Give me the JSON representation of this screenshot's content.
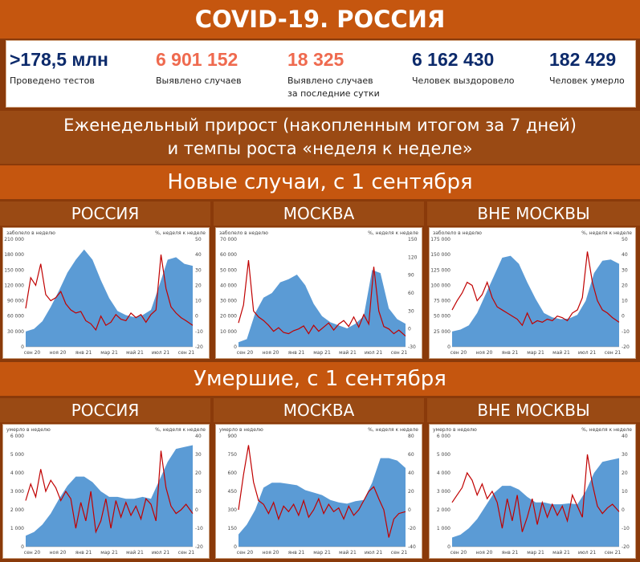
{
  "header": {
    "title": "COVID-19. РОССИЯ",
    "stats": [
      {
        "value": ">178,5 млн",
        "label": "Проведено тестов",
        "color": "#0c2a6b"
      },
      {
        "value": "6 901 152",
        "label": "Выявлено случаев",
        "color": "#ef6a4f"
      },
      {
        "value": "18 325",
        "label": "Выявлено случаев\nза последние сутки",
        "color": "#ef6a4f"
      },
      {
        "value": "6 162 430",
        "label": "Человек выздоровело",
        "color": "#0c2a6b"
      },
      {
        "value": "182 429",
        "label": "Человек умерло",
        "color": "#0c2a6b"
      }
    ],
    "subtitle_line1": "Еженедельный прирост (накопленным итогом за 7 дней)",
    "subtitle_line2": "и темпы роста «неделя к неделе»"
  },
  "sections": {
    "cases_title": "Новые случаи, с 1 сентября",
    "deaths_title": "Умершие, с 1 сентября"
  },
  "colors": {
    "area": "#5b9bd5",
    "line": "#c00000",
    "orange": "#c5560f",
    "brown": "#9a4a14"
  },
  "chart_data": [
    {
      "type": "area",
      "region": "РОССИЯ",
      "metric": "cases",
      "ylabel_left": "заболело в неделю",
      "ylabel_right": "%, неделя к неделе",
      "ylim": [
        0,
        210000
      ],
      "y2lim": [
        -20,
        50
      ],
      "yticks": [
        "0",
        "30 000",
        "60 000",
        "90 000",
        "120 000",
        "150 000",
        "180 000",
        "210 000"
      ],
      "y2ticks": [
        "-20",
        "-10",
        "0",
        "10",
        "20",
        "30",
        "40",
        "50"
      ],
      "xticks": [
        "сен 20",
        "ноя 20",
        "янв 21",
        "мар 21",
        "май 21",
        "июл 21",
        "сен 21"
      ],
      "series": [
        {
          "kind": "area",
          "x": [
            0,
            0.05,
            0.1,
            0.15,
            0.2,
            0.25,
            0.3,
            0.35,
            0.4,
            0.45,
            0.5,
            0.55,
            0.6,
            0.65,
            0.7,
            0.75,
            0.8,
            0.85,
            0.9,
            0.95,
            1
          ],
          "values": [
            30000,
            35000,
            50000,
            78000,
            110000,
            145000,
            170000,
            190000,
            170000,
            130000,
            95000,
            70000,
            62000,
            58000,
            62000,
            72000,
            120000,
            170000,
            175000,
            162000,
            158000
          ]
        },
        {
          "kind": "line",
          "x": [
            0,
            0.03,
            0.06,
            0.09,
            0.12,
            0.15,
            0.18,
            0.21,
            0.24,
            0.27,
            0.3,
            0.33,
            0.36,
            0.39,
            0.42,
            0.45,
            0.48,
            0.51,
            0.54,
            0.57,
            0.6,
            0.63,
            0.66,
            0.69,
            0.72,
            0.75,
            0.78,
            0.81,
            0.84,
            0.87,
            0.9,
            0.93,
            0.96,
            1
          ],
          "values": [
            5,
            25,
            20,
            34,
            14,
            10,
            12,
            16,
            8,
            4,
            2,
            3,
            -3,
            -5,
            -9,
            0,
            -6,
            -4,
            1,
            -2,
            -3,
            2,
            -1,
            1,
            -4,
            1,
            4,
            40,
            18,
            6,
            2,
            -1,
            -3,
            -6
          ]
        }
      ]
    },
    {
      "type": "area",
      "region": "МОСКВА",
      "metric": "cases",
      "ylabel_left": "заболело в неделю",
      "ylabel_right": "%, неделя к неделе",
      "ylim": [
        0,
        70000
      ],
      "y2lim": [
        -30,
        150
      ],
      "yticks": [
        "0",
        "10 000",
        "20 000",
        "30 000",
        "40 000",
        "50 000",
        "60 000",
        "70 000"
      ],
      "y2ticks": [
        "-30",
        "0",
        "30",
        "60",
        "90",
        "120",
        "150"
      ],
      "xticks": [
        "сен 20",
        "ноя 20",
        "янв 21",
        "мар 21",
        "май 21",
        "июл 21",
        "сен 21"
      ],
      "series": [
        {
          "kind": "area",
          "x": [
            0,
            0.05,
            0.1,
            0.15,
            0.2,
            0.25,
            0.3,
            0.35,
            0.4,
            0.45,
            0.5,
            0.55,
            0.6,
            0.65,
            0.7,
            0.75,
            0.8,
            0.85,
            0.9,
            0.95,
            1
          ],
          "values": [
            3000,
            5000,
            22000,
            32000,
            35000,
            42000,
            44000,
            47000,
            40000,
            28000,
            20000,
            16000,
            14000,
            12000,
            15000,
            20000,
            50000,
            48000,
            25000,
            18000,
            15000
          ]
        },
        {
          "kind": "line",
          "x": [
            0,
            0.03,
            0.06,
            0.09,
            0.12,
            0.15,
            0.18,
            0.21,
            0.24,
            0.27,
            0.3,
            0.33,
            0.36,
            0.39,
            0.42,
            0.45,
            0.48,
            0.51,
            0.54,
            0.57,
            0.6,
            0.63,
            0.66,
            0.69,
            0.72,
            0.75,
            0.78,
            0.81,
            0.84,
            0.87,
            0.9,
            0.93,
            0.96,
            1
          ],
          "values": [
            10,
            40,
            115,
            30,
            20,
            14,
            6,
            -4,
            2,
            -6,
            -8,
            -3,
            0,
            5,
            -8,
            6,
            -4,
            3,
            10,
            -2,
            8,
            14,
            4,
            20,
            3,
            24,
            8,
            104,
            30,
            4,
            0,
            -8,
            -2,
            -12
          ]
        }
      ]
    },
    {
      "type": "area",
      "region": "ВНЕ МОСКВЫ",
      "metric": "cases",
      "ylabel_left": "заболело в неделю",
      "ylabel_right": "%, неделя к неделе",
      "ylim": [
        0,
        175000
      ],
      "y2lim": [
        -20,
        50
      ],
      "yticks": [
        "0",
        "25 000",
        "50 000",
        "75 000",
        "100 000",
        "125 000",
        "150 000",
        "175 000"
      ],
      "y2ticks": [
        "-20",
        "-10",
        "0",
        "10",
        "20",
        "30",
        "40",
        "50"
      ],
      "xticks": [
        "сен 20",
        "ноя 20",
        "янв 21",
        "мар 21",
        "май 21",
        "июл 21",
        "сен 21"
      ],
      "series": [
        {
          "kind": "area",
          "x": [
            0,
            0.05,
            0.1,
            0.15,
            0.2,
            0.25,
            0.3,
            0.35,
            0.4,
            0.45,
            0.5,
            0.55,
            0.6,
            0.65,
            0.7,
            0.75,
            0.8,
            0.85,
            0.9,
            0.95,
            1
          ],
          "values": [
            25000,
            28000,
            35000,
            55000,
            85000,
            115000,
            145000,
            148000,
            135000,
            105000,
            78000,
            55000,
            48000,
            45000,
            46000,
            52000,
            75000,
            120000,
            140000,
            142000,
            135000
          ]
        },
        {
          "kind": "line",
          "x": [
            0,
            0.03,
            0.06,
            0.09,
            0.12,
            0.15,
            0.18,
            0.21,
            0.24,
            0.27,
            0.3,
            0.33,
            0.36,
            0.39,
            0.42,
            0.45,
            0.48,
            0.51,
            0.54,
            0.57,
            0.6,
            0.63,
            0.66,
            0.69,
            0.72,
            0.75,
            0.78,
            0.81,
            0.84,
            0.87,
            0.9,
            0.93,
            0.96,
            1
          ],
          "values": [
            4,
            10,
            15,
            22,
            20,
            10,
            14,
            22,
            12,
            6,
            4,
            2,
            0,
            -2,
            -6,
            2,
            -5,
            -3,
            -4,
            -2,
            -3,
            0,
            -1,
            -3,
            2,
            4,
            12,
            42,
            22,
            10,
            4,
            2,
            -1,
            -4
          ]
        }
      ]
    },
    {
      "type": "area",
      "region": "РОССИЯ",
      "metric": "deaths",
      "ylabel_left": "умерло в неделю",
      "ylabel_right": "%, неделя к неделе",
      "ylim": [
        0,
        6000
      ],
      "y2lim": [
        -20,
        40
      ],
      "yticks": [
        "0",
        "1 000",
        "2 000",
        "3 000",
        "4 000",
        "5 000",
        "6 000"
      ],
      "y2ticks": [
        "-20",
        "-10",
        "0",
        "10",
        "20",
        "30",
        "40"
      ],
      "xticks": [
        "сен 20",
        "ноя 20",
        "янв 21",
        "мар 21",
        "май 21",
        "июл 21",
        "сен 21"
      ],
      "series": [
        {
          "kind": "area",
          "x": [
            0,
            0.05,
            0.1,
            0.15,
            0.2,
            0.25,
            0.3,
            0.35,
            0.4,
            0.45,
            0.5,
            0.55,
            0.6,
            0.65,
            0.7,
            0.75,
            0.8,
            0.85,
            0.9,
            0.95,
            1
          ],
          "values": [
            600,
            800,
            1200,
            1800,
            2600,
            3300,
            3800,
            3800,
            3500,
            3000,
            2700,
            2700,
            2600,
            2600,
            2700,
            2600,
            3600,
            4600,
            5300,
            5400,
            5500
          ]
        },
        {
          "kind": "line",
          "x": [
            0,
            0.03,
            0.06,
            0.09,
            0.12,
            0.15,
            0.18,
            0.21,
            0.24,
            0.27,
            0.3,
            0.33,
            0.36,
            0.39,
            0.42,
            0.45,
            0.48,
            0.51,
            0.54,
            0.57,
            0.6,
            0.63,
            0.66,
            0.69,
            0.72,
            0.75,
            0.78,
            0.81,
            0.84,
            0.87,
            0.9,
            0.93,
            0.96,
            1
          ],
          "values": [
            5,
            14,
            7,
            22,
            10,
            16,
            12,
            5,
            10,
            6,
            -10,
            4,
            -6,
            10,
            -12,
            -6,
            6,
            -10,
            5,
            -4,
            4,
            -3,
            2,
            -5,
            6,
            3,
            -6,
            32,
            12,
            2,
            -2,
            0,
            3,
            -2
          ]
        }
      ]
    },
    {
      "type": "area",
      "region": "МОСКВА",
      "metric": "deaths",
      "ylabel_left": "умерло в неделю",
      "ylabel_right": "%, неделя к неделе",
      "ylim": [
        0,
        900
      ],
      "y2lim": [
        -40,
        80
      ],
      "yticks": [
        "0",
        "150",
        "300",
        "450",
        "600",
        "750",
        "900"
      ],
      "y2ticks": [
        "-40",
        "-20",
        "0",
        "20",
        "40",
        "60",
        "80"
      ],
      "xticks": [
        "сен 20",
        "ноя 20",
        "янв 21",
        "мар 21",
        "май 21",
        "июл 21",
        "сен 21"
      ],
      "series": [
        {
          "kind": "area",
          "x": [
            0,
            0.05,
            0.1,
            0.15,
            0.2,
            0.25,
            0.3,
            0.35,
            0.4,
            0.45,
            0.5,
            0.55,
            0.6,
            0.65,
            0.7,
            0.75,
            0.8,
            0.85,
            0.9,
            0.95,
            1
          ],
          "values": [
            100,
            180,
            300,
            480,
            520,
            520,
            510,
            500,
            460,
            440,
            420,
            380,
            360,
            350,
            370,
            380,
            520,
            720,
            720,
            700,
            640
          ]
        },
        {
          "kind": "line",
          "x": [
            0,
            0.03,
            0.06,
            0.09,
            0.12,
            0.15,
            0.18,
            0.21,
            0.24,
            0.27,
            0.3,
            0.33,
            0.36,
            0.39,
            0.42,
            0.45,
            0.48,
            0.51,
            0.54,
            0.57,
            0.6,
            0.63,
            0.66,
            0.69,
            0.72,
            0.75,
            0.78,
            0.81,
            0.84,
            0.87,
            0.9,
            0.93,
            0.96,
            1
          ],
          "values": [
            0,
            38,
            70,
            30,
            10,
            6,
            -4,
            8,
            -10,
            4,
            -2,
            6,
            -6,
            10,
            -8,
            0,
            12,
            -4,
            6,
            -2,
            2,
            -10,
            4,
            -6,
            0,
            10,
            20,
            25,
            12,
            0,
            -30,
            -10,
            -4,
            -2
          ]
        }
      ]
    },
    {
      "type": "area",
      "region": "ВНЕ МОСКВЫ",
      "metric": "deaths",
      "ylabel_left": "умерло в неделю",
      "ylabel_right": "%, неделя к неделе",
      "ylim": [
        0,
        6000
      ],
      "y2lim": [
        -20,
        40
      ],
      "yticks": [
        "0",
        "1 000",
        "2 000",
        "3 000",
        "4 000",
        "5 000",
        "6 000"
      ],
      "y2ticks": [
        "-20",
        "-10",
        "0",
        "10",
        "20",
        "30",
        "40"
      ],
      "xticks": [
        "сен 20",
        "ноя 20",
        "янв 21",
        "мар 21",
        "май 21",
        "июл 21",
        "сен 21"
      ],
      "series": [
        {
          "kind": "area",
          "x": [
            0,
            0.05,
            0.1,
            0.15,
            0.2,
            0.25,
            0.3,
            0.35,
            0.4,
            0.45,
            0.5,
            0.55,
            0.6,
            0.65,
            0.7,
            0.75,
            0.8,
            0.85,
            0.9,
            0.95,
            1
          ],
          "values": [
            500,
            650,
            1000,
            1500,
            2200,
            2900,
            3300,
            3300,
            3100,
            2700,
            2400,
            2400,
            2300,
            2300,
            2350,
            2300,
            3000,
            4000,
            4600,
            4700,
            4800
          ]
        },
        {
          "kind": "line",
          "x": [
            0,
            0.03,
            0.06,
            0.09,
            0.12,
            0.15,
            0.18,
            0.21,
            0.24,
            0.27,
            0.3,
            0.33,
            0.36,
            0.39,
            0.42,
            0.45,
            0.48,
            0.51,
            0.54,
            0.57,
            0.6,
            0.63,
            0.66,
            0.69,
            0.72,
            0.75,
            0.78,
            0.81,
            0.84,
            0.87,
            0.9,
            0.93,
            0.96,
            1
          ],
          "values": [
            4,
            8,
            12,
            20,
            16,
            8,
            14,
            6,
            10,
            4,
            -10,
            6,
            -6,
            8,
            -12,
            -4,
            6,
            -8,
            4,
            -4,
            3,
            -3,
            2,
            -6,
            8,
            2,
            -4,
            30,
            14,
            2,
            -2,
            1,
            3,
            -1
          ]
        }
      ]
    }
  ]
}
